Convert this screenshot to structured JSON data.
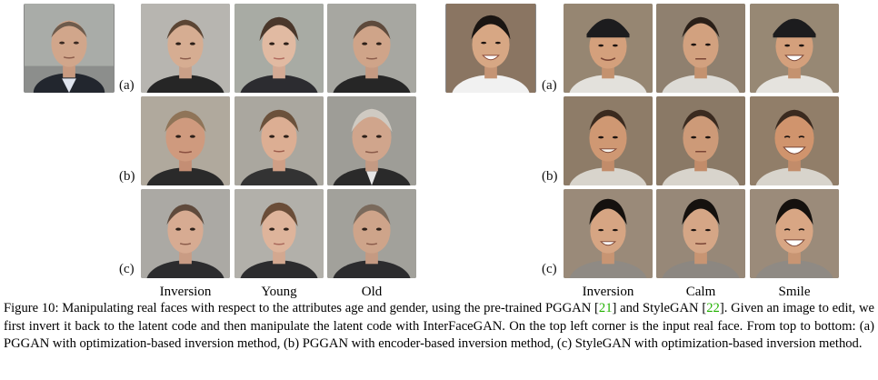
{
  "figure": {
    "left_panel": {
      "input_face": {
        "description": "middle-aged man, suit, gray backdrop"
      },
      "row_labels": [
        "(a)",
        "(b)",
        "(c)"
      ],
      "column_labels": [
        "Inversion",
        "Young",
        "Old"
      ]
    },
    "right_panel": {
      "input_face": {
        "description": "smiling young man, brown backdrop"
      },
      "row_labels": [
        "(a)",
        "(b)",
        "(c)"
      ],
      "column_labels": [
        "Inversion",
        "Calm",
        "Smile"
      ]
    },
    "caption": {
      "prefix": "Figure 10: Manipulating real faces with respect to the attributes age and gender, using the pre-trained PGGAN [",
      "ref1": "21",
      "mid": "] and StyleGAN [",
      "ref2": "22",
      "suffix": "]. Given an image to edit, we first invert it back to the latent code and then manipulate the latent code with InterFaceGAN. On the top left corner is the input real face. From top to bottom: (a) PGGAN with optimization-based inversion method, (b) PGGAN with encoder-based inversion method, (c) StyleGAN with optimization-based inversion method."
    },
    "colors": {
      "citation": "#22b100"
    }
  }
}
